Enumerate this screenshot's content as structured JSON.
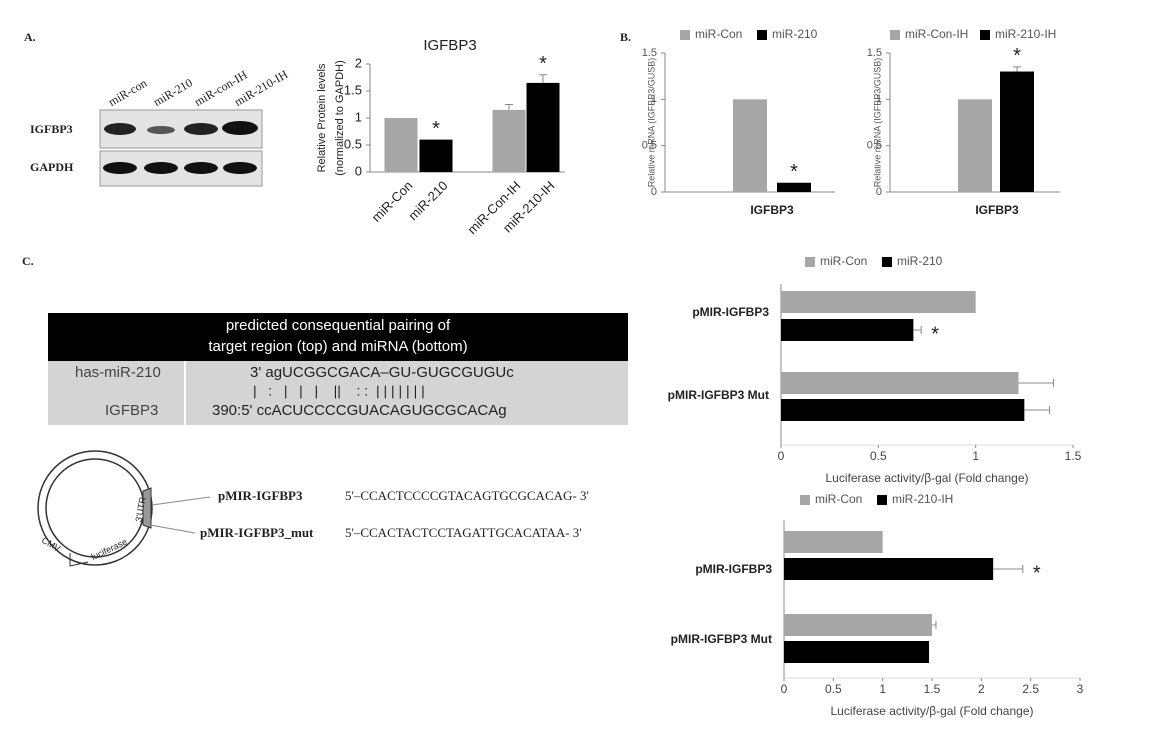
{
  "panel_labels": [
    "A.",
    "B.",
    "C."
  ],
  "blot": {
    "lanes": [
      "miR-con",
      "miR-210",
      "miR-con-IH",
      "miR-210-IH"
    ],
    "rows": [
      "IGFBP3",
      "GAPDH"
    ]
  },
  "pairing_table": {
    "header": [
      "predicted consequential pairing of",
      "target region (top) and miRNA (bottom)"
    ],
    "mirna": {
      "name": "has-miR-210",
      "sequence": "3' agUCGGCGACA–GU-GUGCGUGUc"
    },
    "pairing": "|   :   |   |   |    ||    : :  | | | | | | |",
    "target": {
      "name": "IGFBP3",
      "sequence": "390:5' ccACUCCCCGUACAGUGCGCACAg"
    }
  },
  "plasmid": {
    "labels": [
      "3'UTR",
      "luciferase",
      "CMV"
    ]
  },
  "constructs": [
    {
      "name": "pMIR-IGFBP3",
      "sequence": "5'–CCACTCCCCGTACAGTGCGCACAG- 3'"
    },
    {
      "name": "pMIR-IGFBP3_mut",
      "sequence": "5'–CCACTACTCCTAGATTGCACATAA- 3'"
    }
  ],
  "chart_data": [
    {
      "type": "bar",
      "title": "IGFBP3",
      "ylabel": [
        "Relative Protein levels",
        "(normalized to GAPDH)"
      ],
      "categories": [
        "miR-Con",
        "miR-210",
        "miR-Con-IH",
        "miR-210-IH"
      ],
      "values": [
        1.0,
        0.6,
        1.15,
        1.65
      ],
      "errors": [
        null,
        null,
        0.1,
        0.15
      ],
      "stars": [
        null,
        "*",
        null,
        "*"
      ],
      "colors": [
        "#a6a6a6",
        "#000000",
        "#a6a6a6",
        "#000000"
      ],
      "ylim": [
        0,
        2
      ],
      "yticks": [
        0,
        0.5,
        1,
        1.5,
        2
      ]
    },
    {
      "type": "bar",
      "ylabel": "Relative mRNA (IGFBP3/GUSB)",
      "categories": [
        "IGFBP3"
      ],
      "series": [
        {
          "name": "miR-Con",
          "color": "#a6a6a6",
          "values": [
            1.0
          ]
        },
        {
          "name": "miR-210",
          "color": "#000000",
          "values": [
            0.1
          ],
          "stars": [
            "*"
          ]
        }
      ],
      "ylim": [
        0,
        1.5
      ],
      "yticks": [
        0,
        0.5,
        1,
        1.5
      ]
    },
    {
      "type": "bar",
      "ylabel": "Relative mRNA (IGFBP3/GUSB)",
      "categories": [
        "IGFBP3"
      ],
      "series": [
        {
          "name": "miR-Con-IH",
          "color": "#a6a6a6",
          "values": [
            1.0
          ]
        },
        {
          "name": "miR-210-IH",
          "color": "#000000",
          "values": [
            1.3
          ],
          "errors": [
            0.05
          ],
          "stars": [
            "*"
          ]
        }
      ],
      "ylim": [
        0,
        1.5
      ],
      "yticks": [
        0,
        0.5,
        1,
        1.5
      ]
    },
    {
      "type": "barh",
      "xlabel": "Luciferase activity/β-gal (Fold change)",
      "categories": [
        "pMIR-IGFBP3",
        "pMIR-IGFBP3 Mut"
      ],
      "series": [
        {
          "name": "miR-Con",
          "color": "#a6a6a6",
          "values": [
            1.0,
            1.22
          ],
          "errors": [
            null,
            0.18
          ]
        },
        {
          "name": "miR-210",
          "color": "#000000",
          "values": [
            0.68,
            1.25
          ],
          "errors": [
            0.04,
            0.13
          ],
          "stars": [
            "*",
            null
          ]
        }
      ],
      "xlim": [
        0,
        1.5
      ],
      "xticks": [
        0,
        0.5,
        1,
        1.5
      ]
    },
    {
      "type": "barh",
      "xlabel": "Luciferase activity/β-gal (Fold change)",
      "categories": [
        "pMIR-IGFBP3",
        "pMIR-IGFBP3 Mut"
      ],
      "series": [
        {
          "name": "miR-Con",
          "color": "#a6a6a6",
          "values": [
            1.0,
            1.5
          ],
          "errors": [
            null,
            0.04
          ]
        },
        {
          "name": "miR-210-IH",
          "color": "#000000",
          "values": [
            2.12,
            1.47
          ],
          "errors": [
            0.3,
            null
          ],
          "stars": [
            "*",
            null
          ]
        }
      ],
      "xlim": [
        0,
        3
      ],
      "xticks": [
        0,
        0.5,
        1,
        1.5,
        2,
        2.5,
        3
      ]
    }
  ]
}
